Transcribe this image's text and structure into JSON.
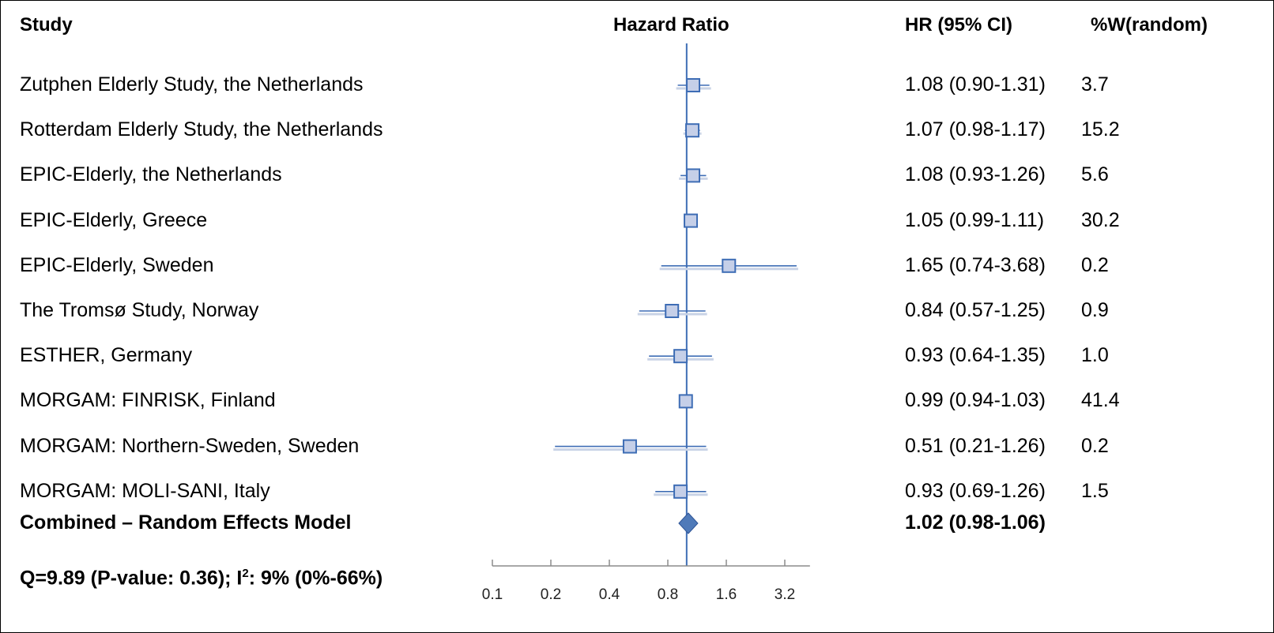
{
  "headers": {
    "study": "Study",
    "plot": "Hazard Ratio",
    "hr": "HR (95% CI)",
    "weight": "%W(random)"
  },
  "chart_data": {
    "type": "forest",
    "x_scale": "log2",
    "xlim": [
      0.1,
      4.0
    ],
    "reference_line": 1.0,
    "tick_labels": [
      "0.1",
      "0.2",
      "0.4",
      "0.8",
      "1.6",
      "3.2"
    ],
    "ticks": [
      0.1,
      0.2,
      0.4,
      0.8,
      1.6,
      3.2
    ],
    "studies": [
      {
        "name": "Zutphen Elderly Study, the Netherlands",
        "hr": 1.08,
        "lo": 0.9,
        "hi": 1.31,
        "hr_text": "1.08 (0.90-1.31)",
        "weight": "3.7"
      },
      {
        "name": "Rotterdam Elderly Study, the Netherlands",
        "hr": 1.07,
        "lo": 0.98,
        "hi": 1.17,
        "hr_text": "1.07 (0.98-1.17)",
        "weight": "15.2"
      },
      {
        "name": "EPIC-Elderly, the Netherlands",
        "hr": 1.08,
        "lo": 0.93,
        "hi": 1.26,
        "hr_text": "1.08 (0.93-1.26)",
        "weight": "5.6"
      },
      {
        "name": "EPIC-Elderly, Greece",
        "hr": 1.05,
        "lo": 0.99,
        "hi": 1.11,
        "hr_text": "1.05 (0.99-1.11)",
        "weight": "30.2"
      },
      {
        "name": "EPIC-Elderly, Sweden",
        "hr": 1.65,
        "lo": 0.74,
        "hi": 3.68,
        "hr_text": "1.65 (0.74-3.68)",
        "weight": "0.2"
      },
      {
        "name": "The Tromsø Study, Norway",
        "hr": 0.84,
        "lo": 0.57,
        "hi": 1.25,
        "hr_text": "0.84 (0.57-1.25)",
        "weight": "0.9"
      },
      {
        "name": "ESTHER, Germany",
        "hr": 0.93,
        "lo": 0.64,
        "hi": 1.35,
        "hr_text": "0.93 (0.64-1.35)",
        "weight": "1.0"
      },
      {
        "name": "MORGAM: FINRISK, Finland",
        "hr": 0.99,
        "lo": 0.94,
        "hi": 1.03,
        "hr_text": "0.99 (0.94-1.03)",
        "weight": "41.4"
      },
      {
        "name": "MORGAM: Northern-Sweden, Sweden",
        "hr": 0.51,
        "lo": 0.21,
        "hi": 1.26,
        "hr_text": "0.51 (0.21-1.26)",
        "weight": "0.2"
      },
      {
        "name": "MORGAM: MOLI-SANI, Italy",
        "hr": 0.93,
        "lo": 0.69,
        "hi": 1.26,
        "hr_text": "0.93 (0.69-1.26)",
        "weight": "1.5"
      }
    ],
    "combined": {
      "name": "Combined – Random Effects Model",
      "hr": 1.02,
      "lo": 0.98,
      "hi": 1.06,
      "hr_text": "1.02 (0.98-1.06)"
    },
    "heterogeneity": {
      "prefix": "Q=9.89 (P-value: 0.36); I",
      "sup": "2",
      "suffix": ": 9% (0%-66%)"
    },
    "colors": {
      "marker_fill": "#c5cfe8",
      "marker_stroke": "#3e6db5",
      "line": "#3e6db5",
      "ci_shadow": "#c9d3e6",
      "diamond": "#4f7ab9",
      "axis": "#8c8c8c"
    }
  }
}
